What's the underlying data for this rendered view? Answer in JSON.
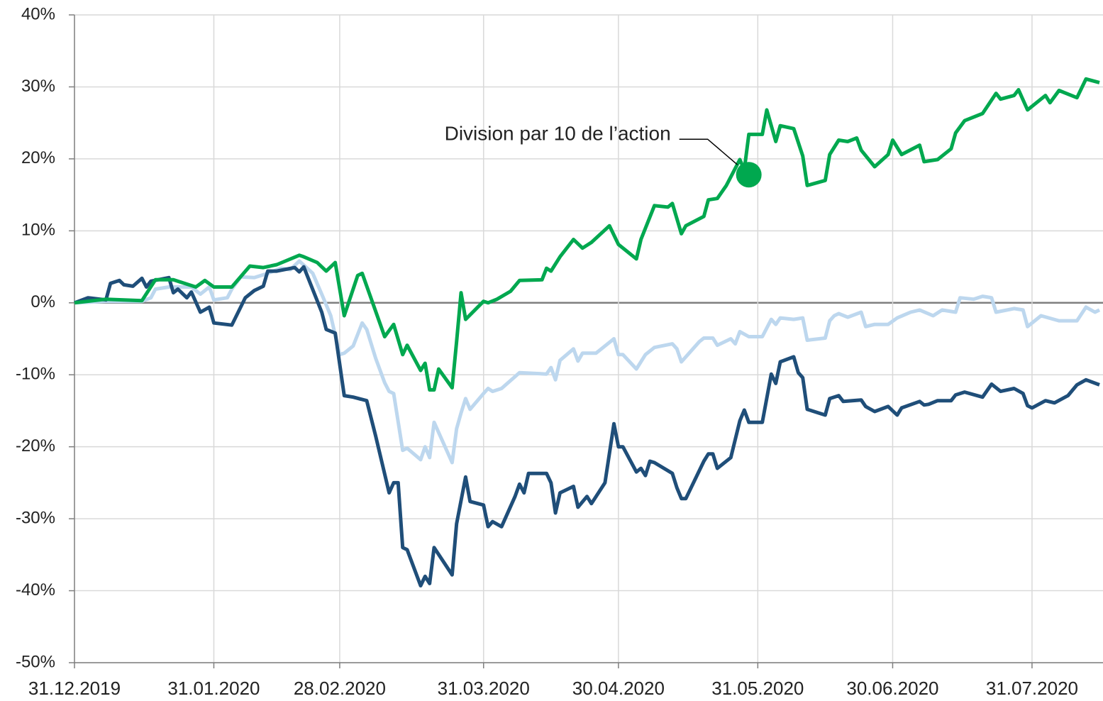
{
  "chart_data": {
    "type": "line",
    "ylim": [
      -50,
      40
    ],
    "yticks": [
      {
        "value": -50,
        "label": "-50%"
      },
      {
        "value": -40,
        "label": "-40%"
      },
      {
        "value": -30,
        "label": "-30%"
      },
      {
        "value": -20,
        "label": "-20%"
      },
      {
        "value": -10,
        "label": "-10%"
      },
      {
        "value": 0,
        "label": "0%"
      },
      {
        "value": 10,
        "label": "10%"
      },
      {
        "value": 20,
        "label": "20%"
      },
      {
        "value": 30,
        "label": "30%"
      },
      {
        "value": 40,
        "label": "40%"
      }
    ],
    "xlim": [
      "31.12.2019",
      "15.08.2020"
    ],
    "xticks": [
      "31.12.2019",
      "31.01.2020",
      "28.02.2020",
      "31.03.2020",
      "30.04.2020",
      "31.05.2020",
      "30.06.2020",
      "31.07.2020"
    ],
    "grid": true,
    "annotations": [
      {
        "text": "Division par 10 de l’action",
        "x": "29.05.2020",
        "y": 17.8
      }
    ],
    "series": [
      {
        "color": "#bdd7ee",
        "x": [
          "31.12.2019",
          "07.01.2020",
          "15.01.2020",
          "17.01.2020",
          "18.01.2020",
          "21.01.2020",
          "26.01.2020",
          "28.01.2020",
          "30.01.2020",
          "31.01.2020",
          "03.02.2020",
          "04.02.2020",
          "06.02.2020",
          "09.02.2020",
          "12.02.2020",
          "15.02.2020",
          "17.02.2020",
          "19.02.2020",
          "22.02.2020",
          "24.02.2020",
          "26.02.2020",
          "28.02.2020",
          "29.02.2020",
          "02.03.2020",
          "04.03.2020",
          "05.03.2020",
          "07.03.2020",
          "09.03.2020",
          "10.03.2020",
          "11.03.2020",
          "13.03.2020",
          "14.03.2020",
          "17.03.2020",
          "18.03.2020",
          "19.03.2020",
          "20.03.2020",
          "24.03.2020",
          "25.03.2020",
          "26.03.2020",
          "27.03.2020",
          "28.03.2020",
          "31.03.2020",
          "01.04.2020",
          "02.04.2020",
          "04.04.2020",
          "08.04.2020",
          "14.04.2020",
          "15.04.2020",
          "16.04.2020",
          "17.04.2020",
          "20.04.2020",
          "21.04.2020",
          "22.04.2020",
          "25.04.2020",
          "28.04.2020",
          "29.04.2020",
          "30.04.2020",
          "01.05.2020",
          "04.05.2020",
          "06.05.2020",
          "08.05.2020",
          "12.05.2020",
          "13.05.2020",
          "14.05.2020",
          "18.05.2020",
          "19.05.2020",
          "21.05.2020",
          "22.05.2020",
          "25.05.2020",
          "26.05.2020",
          "27.05.2020",
          "29.05.2020",
          "01.06.2020",
          "03.06.2020",
          "04.06.2020",
          "05.06.2020",
          "08.06.2020",
          "10.06.2020",
          "11.06.2020",
          "15.06.2020",
          "16.06.2020",
          "17.06.2020",
          "18.06.2020",
          "20.06.2020",
          "23.06.2020",
          "24.06.2020",
          "26.06.2020",
          "29.06.2020",
          "01.07.2020",
          "04.07.2020",
          "06.07.2020",
          "09.07.2020",
          "11.07.2020",
          "14.07.2020",
          "15.07.2020",
          "18.07.2020",
          "20.07.2020",
          "22.07.2020",
          "23.07.2020",
          "27.07.2020",
          "29.07.2020",
          "30.07.2020",
          "02.08.2020",
          "06.08.2020",
          "10.08.2020",
          "12.08.2020",
          "14.08.2020",
          "15.08.2020"
        ],
        "values": [
          0,
          0.2,
          0.2,
          0.7,
          1.9,
          2.2,
          2.2,
          1.2,
          2.2,
          0.4,
          0.7,
          1.9,
          3.6,
          3.5,
          4.1,
          4.8,
          4.6,
          5.8,
          4.1,
          1.2,
          -1.8,
          -7.2,
          -7.0,
          -6.0,
          -2.8,
          -3.7,
          -7.7,
          -11.1,
          -12.3,
          -12.6,
          -20.5,
          -20.2,
          -21.8,
          -20,
          -21.5,
          -16.6,
          -22.2,
          -17.5,
          -15.3,
          -13.3,
          -14.8,
          -12.6,
          -11.9,
          -12.3,
          -11.9,
          -9.7,
          -9.9,
          -9.0,
          -10.7,
          -8.0,
          -6.4,
          -8.1,
          -7.0,
          -7.0,
          -5.5,
          -5.0,
          -7.2,
          -7.2,
          -9.2,
          -7.2,
          -6.2,
          -5.7,
          -6.4,
          -8.2,
          -5.4,
          -4.9,
          -4.9,
          -5.9,
          -5.0,
          -5.7,
          -4.0,
          -4.7,
          -4.7,
          -2.3,
          -3.0,
          -2.1,
          -2.3,
          -2.1,
          -5.2,
          -4.9,
          -2.5,
          -1.8,
          -1.5,
          -2.0,
          -1.3,
          -3.3,
          -3.0,
          -3.0,
          -2.1,
          -1.3,
          -1.0,
          -1.8,
          -1.0,
          -1.3,
          0.7,
          0.5,
          0.9,
          0.7,
          -1.3,
          -0.8,
          -1.0,
          -3.3,
          -1.8,
          -2.5,
          -2.5,
          -0.6,
          -1.3,
          -1.0
        ]
      },
      {
        "color": "#1f4e79",
        "x": [
          "31.12.2019",
          "03.01.2020",
          "07.01.2020",
          "08.01.2020",
          "10.01.2020",
          "11.01.2020",
          "13.01.2020",
          "15.01.2020",
          "16.01.2020",
          "17.01.2020",
          "21.01.2020",
          "22.01.2020",
          "23.01.2020",
          "25.01.2020",
          "26.01.2020",
          "28.01.2020",
          "30.01.2020",
          "31.01.2020",
          "04.02.2020",
          "07.02.2020",
          "09.02.2020",
          "11.02.2020",
          "12.02.2020",
          "14.02.2020",
          "18.02.2020",
          "19.02.2020",
          "20.02.2020",
          "24.02.2020",
          "25.02.2020",
          "27.02.2020",
          "29.02.2020",
          "02.03.2020",
          "05.03.2020",
          "07.03.2020",
          "10.03.2020",
          "11.03.2020",
          "12.03.2020",
          "13.03.2020",
          "14.03.2020",
          "17.03.2020",
          "18.03.2020",
          "19.03.2020",
          "20.03.2020",
          "24.03.2020",
          "25.03.2020",
          "27.03.2020",
          "28.03.2020",
          "31.03.2020",
          "01.04.2020",
          "02.04.2020",
          "04.04.2020",
          "07.04.2020",
          "08.04.2020",
          "09.04.2020",
          "10.04.2020",
          "14.04.2020",
          "15.04.2020",
          "16.04.2020",
          "17.04.2020",
          "20.04.2020",
          "21.04.2020",
          "23.04.2020",
          "24.04.2020",
          "27.04.2020",
          "29.04.2020",
          "30.04.2020",
          "01.05.2020",
          "04.05.2020",
          "05.05.2020",
          "06.05.2020",
          "07.05.2020",
          "08.05.2020",
          "12.05.2020",
          "13.05.2020",
          "14.05.2020",
          "15.05.2020",
          "19.05.2020",
          "20.05.2020",
          "21.05.2020",
          "22.05.2020",
          "25.05.2020",
          "27.05.2020",
          "28.05.2020",
          "29.05.2020",
          "01.06.2020",
          "03.06.2020",
          "04.06.2020",
          "05.06.2020",
          "08.06.2020",
          "09.06.2020",
          "10.06.2020",
          "11.06.2020",
          "15.06.2020",
          "16.06.2020",
          "18.06.2020",
          "19.06.2020",
          "23.06.2020",
          "24.06.2020",
          "26.06.2020",
          "29.06.2020",
          "01.07.2020",
          "02.07.2020",
          "06.07.2020",
          "07.07.2020",
          "08.07.2020",
          "10.07.2020",
          "13.07.2020",
          "14.07.2020",
          "16.07.2020",
          "20.07.2020",
          "22.07.2020",
          "24.07.2020",
          "27.07.2020",
          "29.07.2020",
          "30.07.2020",
          "31.07.2020",
          "03.08.2020",
          "05.08.2020",
          "08.08.2020",
          "10.08.2020",
          "12.08.2020",
          "15.08.2020"
        ],
        "values": [
          0,
          0.7,
          0.4,
          2.7,
          3.1,
          2.5,
          2.3,
          3.4,
          2.2,
          3.0,
          3.5,
          1.4,
          1.9,
          0.7,
          1.5,
          -1.3,
          -0.6,
          -2.8,
          -3.1,
          0.7,
          1.7,
          2.3,
          4.4,
          4.4,
          4.9,
          4.3,
          5.0,
          -1.3,
          -3.7,
          -4.2,
          -12.9,
          -13.1,
          -13.6,
          -18.5,
          -26.4,
          -25.0,
          -25,
          -34,
          -34.3,
          -39.3,
          -38,
          -39,
          -34,
          -37.8,
          -30.7,
          -24.2,
          -27.6,
          -28.1,
          -31.1,
          -30.4,
          -31.1,
          -26.9,
          -25.2,
          -26.4,
          -23.7,
          -23.7,
          -25,
          -29.2,
          -26.4,
          -25.5,
          -28.4,
          -26.9,
          -27.9,
          -25,
          -16.8,
          -20,
          -20,
          -23.5,
          -23.0,
          -24,
          -22,
          -22.2,
          -23.7,
          -25.7,
          -27.2,
          -27.2,
          -22,
          -21,
          -21,
          -23,
          -21.5,
          -16.4,
          -14.9,
          -16.6,
          -16.6,
          -9.9,
          -11.2,
          -8.2,
          -7.5,
          -9.7,
          -10.4,
          -14.8,
          -15.6,
          -13.3,
          -12.9,
          -13.7,
          -13.5,
          -14.4,
          -15.1,
          -14.4,
          -15.6,
          -14.6,
          -13.7,
          -14.2,
          -14.1,
          -13.6,
          -13.6,
          -12.8,
          -12.4,
          -13.1,
          -11.3,
          -12.3,
          -11.9,
          -12.6,
          -14.3,
          -14.6,
          -13.6,
          -13.9,
          -12.9,
          -11.4,
          -10.7,
          -11.4
        ]
      },
      {
        "color": "#00a84f",
        "x": [
          "31.12.2019",
          "07.01.2020",
          "15.01.2020",
          "18.01.2020",
          "22.01.2020",
          "27.01.2020",
          "29.01.2020",
          "31.01.2020",
          "04.02.2020",
          "08.02.2020",
          "11.02.2020",
          "14.02.2020",
          "19.02.2020",
          "20.02.2020",
          "23.02.2020",
          "25.02.2020",
          "27.02.2020",
          "29.02.2020",
          "03.03.2020",
          "04.03.2020",
          "09.03.2020",
          "11.03.2020",
          "13.03.2020",
          "14.03.2020",
          "17.03.2020",
          "18.03.2020",
          "19.03.2020",
          "20.03.2020",
          "21.03.2020",
          "24.03.2020",
          "25.03.2020",
          "26.03.2020",
          "27.03.2020",
          "31.03.2020",
          "01.04.2020",
          "03.04.2020",
          "06.04.2020",
          "08.04.2020",
          "13.04.2020",
          "14.04.2020",
          "15.04.2020",
          "17.04.2020",
          "20.04.2020",
          "22.04.2020",
          "24.04.2020",
          "28.04.2020",
          "30.04.2020",
          "04.05.2020",
          "05.05.2020",
          "08.05.2020",
          "11.05.2020",
          "12.05.2020",
          "14.05.2020",
          "15.05.2020",
          "19.05.2020",
          "20.05.2020",
          "22.05.2020",
          "24.05.2020",
          "27.05.2020",
          "28.05.2020",
          "29.05.2020",
          "01.06.2020",
          "02.06.2020",
          "04.06.2020",
          "05.06.2020",
          "08.06.2020",
          "10.06.2020",
          "11.06.2020",
          "15.06.2020",
          "16.06.2020",
          "18.06.2020",
          "20.06.2020",
          "22.06.2020",
          "23.06.2020",
          "26.06.2020",
          "29.06.2020",
          "30.06.2020",
          "02.07.2020",
          "06.07.2020",
          "07.07.2020",
          "10.07.2020",
          "13.07.2020",
          "14.07.2020",
          "16.07.2020",
          "20.07.2020",
          "23.07.2020",
          "24.07.2020",
          "27.07.2020",
          "28.07.2020",
          "30.07.2020",
          "03.08.2020",
          "04.08.2020",
          "06.08.2020",
          "10.08.2020",
          "12.08.2020",
          "15.08.2020"
        ],
        "values": [
          0,
          0.5,
          0.3,
          3.2,
          3.2,
          2.2,
          3.1,
          2.2,
          2.2,
          5.1,
          4.9,
          5.3,
          6.6,
          6.4,
          5.6,
          4.4,
          5.6,
          -1.8,
          3.8,
          4.1,
          -4.7,
          -3,
          -7.2,
          -5.9,
          -9.4,
          -8.4,
          -12.1,
          -12.1,
          -9.2,
          -11.8,
          -5.4,
          1.4,
          -2.3,
          0.2,
          0,
          0.5,
          1.6,
          3.1,
          3.2,
          4.8,
          4.4,
          6.4,
          8.8,
          7.6,
          8.4,
          10.7,
          8.1,
          6.1,
          8.8,
          13.5,
          13.3,
          13.8,
          9.6,
          10.7,
          12.0,
          14.3,
          14.5,
          16.3,
          19.9,
          18.5,
          23.4,
          23.4,
          26.8,
          22.4,
          24.6,
          24.2,
          20.4,
          16.3,
          17,
          20.6,
          22.6,
          22.4,
          22.9,
          21.2,
          18.9,
          20.6,
          22.6,
          20.6,
          21.9,
          19.6,
          19.9,
          21.4,
          23.6,
          25.3,
          26.3,
          29.1,
          28.3,
          28.8,
          29.6,
          26.8,
          28.8,
          27.8,
          29.5,
          28.5,
          31.1,
          30.6
        ]
      }
    ]
  }
}
